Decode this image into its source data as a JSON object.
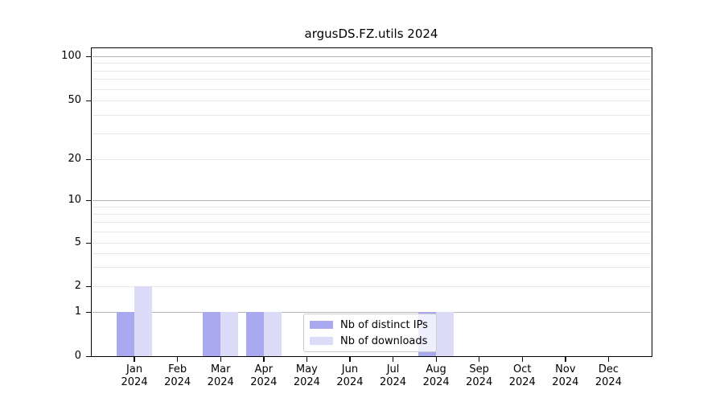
{
  "title": "argusDS.FZ.utils 2024",
  "legend": {
    "items": [
      {
        "label": "Nb of distinct IPs",
        "color_key": "ips"
      },
      {
        "label": "Nb of downloads",
        "color_key": "downloads"
      }
    ]
  },
  "colors": {
    "ips": "#a9a9f0",
    "downloads": "#dcdcf8",
    "grid_major": "#b5b5b5",
    "grid_minor": "#e9e9e9",
    "axis": "#000000",
    "legend_border": "#cccccc",
    "background": "#ffffff"
  },
  "chart_data": {
    "type": "bar",
    "title": "argusDS.FZ.utils 2024",
    "categories": [
      "Jan 2024",
      "Feb 2024",
      "Mar 2024",
      "Apr 2024",
      "May 2024",
      "Jun 2024",
      "Jul 2024",
      "Aug 2024",
      "Sep 2024",
      "Oct 2024",
      "Nov 2024",
      "Dec 2024"
    ],
    "x_tick_months": [
      "Jan",
      "Feb",
      "Mar",
      "Apr",
      "May",
      "Jun",
      "Jul",
      "Aug",
      "Sep",
      "Oct",
      "Nov",
      "Dec"
    ],
    "x_tick_year": "2024",
    "series": [
      {
        "name": "Nb of distinct IPs",
        "values": [
          1,
          0,
          1,
          1,
          0,
          0,
          0,
          1,
          0,
          0,
          0,
          0
        ]
      },
      {
        "name": "Nb of downloads",
        "values": [
          2,
          0,
          1,
          1,
          0,
          0,
          0,
          1,
          0,
          0,
          0,
          0
        ]
      }
    ],
    "y_ticks": [
      100,
      50,
      20,
      10,
      5,
      2,
      1,
      0
    ],
    "y_tick_labels": [
      "100",
      "50",
      "20",
      "10",
      "5",
      "2",
      "1",
      "0"
    ],
    "ylim": [
      0,
      100
    ],
    "yscale": "log-with-zero",
    "grid": true,
    "legend_position": "lower-center-inside"
  }
}
